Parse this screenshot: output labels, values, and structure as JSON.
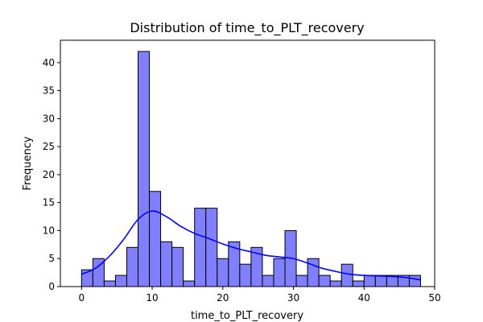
{
  "chart_data": {
    "type": "bar",
    "title": "Distribution of time_to_PLT_recovery",
    "xlabel": "time_to_PLT_recovery",
    "ylabel": "Frequency",
    "xlim": [
      -3,
      50
    ],
    "ylim": [
      0,
      44
    ],
    "x_ticks": [
      0,
      10,
      20,
      30,
      40,
      50
    ],
    "y_ticks": [
      0,
      5,
      10,
      15,
      20,
      25,
      30,
      35,
      40
    ],
    "bin_edges": [
      0,
      1.6,
      3.2,
      4.8,
      6.4,
      8.0,
      9.6,
      11.2,
      12.8,
      14.4,
      16.0,
      17.6,
      19.2,
      20.8,
      22.4,
      24.0,
      25.6,
      27.2,
      28.8,
      30.4,
      32.0,
      33.6,
      35.2,
      36.8,
      38.4,
      40.0,
      41.6,
      43.2,
      44.8,
      46.4,
      48.0
    ],
    "values": [
      3,
      5,
      1,
      2,
      7,
      42,
      17,
      8,
      7,
      1,
      14,
      14,
      5,
      8,
      4,
      7,
      2,
      5,
      10,
      2,
      5,
      2,
      1,
      4,
      1,
      2,
      2,
      2,
      2,
      2
    ],
    "kde": {
      "x": [
        0,
        2,
        4,
        6,
        8,
        10,
        12,
        14,
        16,
        18,
        20,
        22,
        24,
        26,
        28,
        30,
        32,
        34,
        36,
        38,
        40,
        42,
        44,
        46,
        48
      ],
      "y": [
        2.2,
        3.3,
        5.5,
        8.5,
        12.0,
        13.5,
        12.5,
        10.8,
        9.5,
        8.6,
        7.6,
        6.8,
        6.2,
        5.6,
        5.3,
        5.0,
        4.2,
        3.3,
        2.7,
        2.2,
        2.0,
        1.9,
        1.8,
        1.6,
        1.2
      ]
    },
    "bar_color": "#8080ff",
    "bar_edge_color": "#000000",
    "kde_color": "#0000ff",
    "grid": false,
    "legend": "none"
  }
}
